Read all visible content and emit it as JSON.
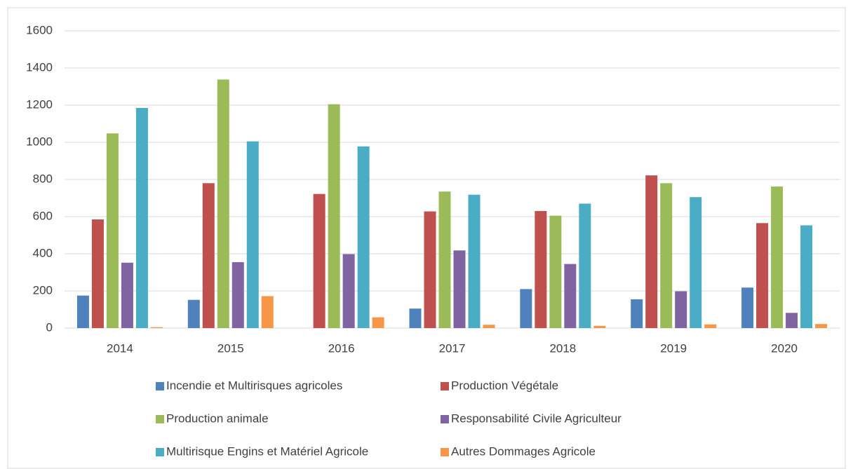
{
  "chart_data": {
    "type": "bar",
    "categories": [
      "2014",
      "2015",
      "2016",
      "2017",
      "2018",
      "2019",
      "2020"
    ],
    "series": [
      {
        "name": "Incendie et Multirisques agricoles",
        "color": "#4f81bd",
        "values": [
          175,
          152,
          0,
          105,
          210,
          155,
          218
        ]
      },
      {
        "name": "Production Végétale",
        "color": "#c0504d",
        "values": [
          585,
          780,
          722,
          628,
          630,
          822,
          565
        ]
      },
      {
        "name": "Production animale",
        "color": "#9bbb59",
        "values": [
          1048,
          1338,
          1205,
          735,
          605,
          780,
          762
        ]
      },
      {
        "name": "Responsabilité Civile Agriculteur",
        "color": "#8064a2",
        "values": [
          352,
          355,
          398,
          418,
          345,
          198,
          82
        ]
      },
      {
        "name": "Multirisque Engins et Matériel Agricole",
        "color": "#4bacc6",
        "values": [
          1185,
          1005,
          978,
          718,
          670,
          705,
          553
        ]
      },
      {
        "name": "Autres Dommages Agricole",
        "color": "#f79646",
        "values": [
          5,
          172,
          58,
          18,
          12,
          20,
          22
        ]
      }
    ],
    "ylim": [
      0,
      1600
    ],
    "yticks": [
      0,
      200,
      400,
      600,
      800,
      1000,
      1200,
      1400,
      1600
    ],
    "grid": true,
    "legend": "bottom"
  }
}
